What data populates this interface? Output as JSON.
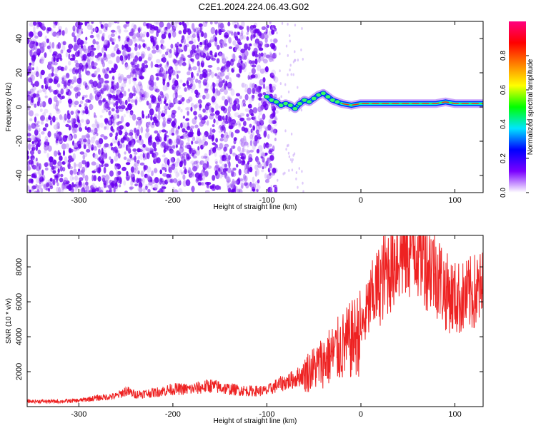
{
  "title": "C2E1.2024.224.06.43.G02",
  "chart_data": [
    {
      "type": "heatmap",
      "xlabel": "Height of straight line (km)",
      "ylabel": "Frequency (Hz)",
      "xlim": [
        -355,
        130
      ],
      "ylim": [
        -50,
        50
      ],
      "x_ticks": [
        -300,
        -200,
        -100,
        0,
        100
      ],
      "y_ticks": [
        -40,
        -20,
        0,
        20,
        40
      ],
      "colorbar": {
        "label": "Normalized spectral amplitude",
        "range": [
          0,
          1
        ],
        "ticks": [
          "0.0",
          "0.2",
          "0.4",
          "0.6",
          "0.8"
        ],
        "colors": [
          "#ffffff",
          "#7a00ff",
          "#0000ff",
          "#00e5ff",
          "#00ff00",
          "#ffff00",
          "#ff8000",
          "#ff0000",
          "#ff0080"
        ]
      },
      "features": {
        "noise_region_x": [
          -355,
          -90
        ],
        "noise_dominant_color": "#6a00f0",
        "signal_line": [
          [
            -100,
            6
          ],
          [
            -95,
            4
          ],
          [
            -90,
            3
          ],
          [
            -85,
            1
          ],
          [
            -80,
            2
          ],
          [
            -75,
            1
          ],
          [
            -70,
            -1
          ],
          [
            -65,
            2
          ],
          [
            -60,
            4
          ],
          [
            -55,
            3
          ],
          [
            -50,
            5
          ],
          [
            -45,
            7
          ],
          [
            -40,
            8
          ],
          [
            -35,
            6
          ],
          [
            -30,
            4
          ],
          [
            -25,
            3
          ],
          [
            -20,
            2
          ],
          [
            -10,
            1
          ],
          [
            0,
            2
          ],
          [
            20,
            2
          ],
          [
            40,
            2
          ],
          [
            60,
            2
          ],
          [
            80,
            2
          ],
          [
            90,
            3
          ],
          [
            100,
            2
          ],
          [
            130,
            2
          ]
        ]
      }
    },
    {
      "type": "line",
      "xlabel": "Height of straight line (km)",
      "ylabel": "SNR (10 * v/v)",
      "xlim": [
        -355,
        130
      ],
      "ylim": [
        0,
        9800
      ],
      "x_ticks": [
        -300,
        -200,
        -100,
        0,
        100
      ],
      "y_ticks": [
        2000,
        4000,
        6000,
        8000
      ],
      "series": [
        {
          "color": "#ee2222",
          "points": [
            [
              -355,
              300
            ],
            [
              -320,
              300
            ],
            [
              -300,
              350
            ],
            [
              -280,
              500
            ],
            [
              -260,
              600
            ],
            [
              -250,
              900
            ],
            [
              -240,
              700
            ],
            [
              -220,
              800
            ],
            [
              -200,
              1000
            ],
            [
              -180,
              1000
            ],
            [
              -160,
              1200
            ],
            [
              -140,
              1000
            ],
            [
              -120,
              900
            ],
            [
              -100,
              900
            ],
            [
              -90,
              1200
            ],
            [
              -70,
              1600
            ],
            [
              -50,
              2200
            ],
            [
              -30,
              3000
            ],
            [
              -10,
              3800
            ],
            [
              0,
              4300
            ],
            [
              10,
              6000
            ],
            [
              20,
              7000
            ],
            [
              30,
              8000
            ],
            [
              40,
              8800
            ],
            [
              50,
              9200
            ],
            [
              60,
              9300
            ],
            [
              65,
              9000
            ],
            [
              70,
              8400
            ],
            [
              80,
              7800
            ],
            [
              90,
              6600
            ],
            [
              100,
              6200
            ],
            [
              110,
              6200
            ],
            [
              120,
              6500
            ],
            [
              130,
              6700
            ]
          ]
        }
      ]
    }
  ]
}
